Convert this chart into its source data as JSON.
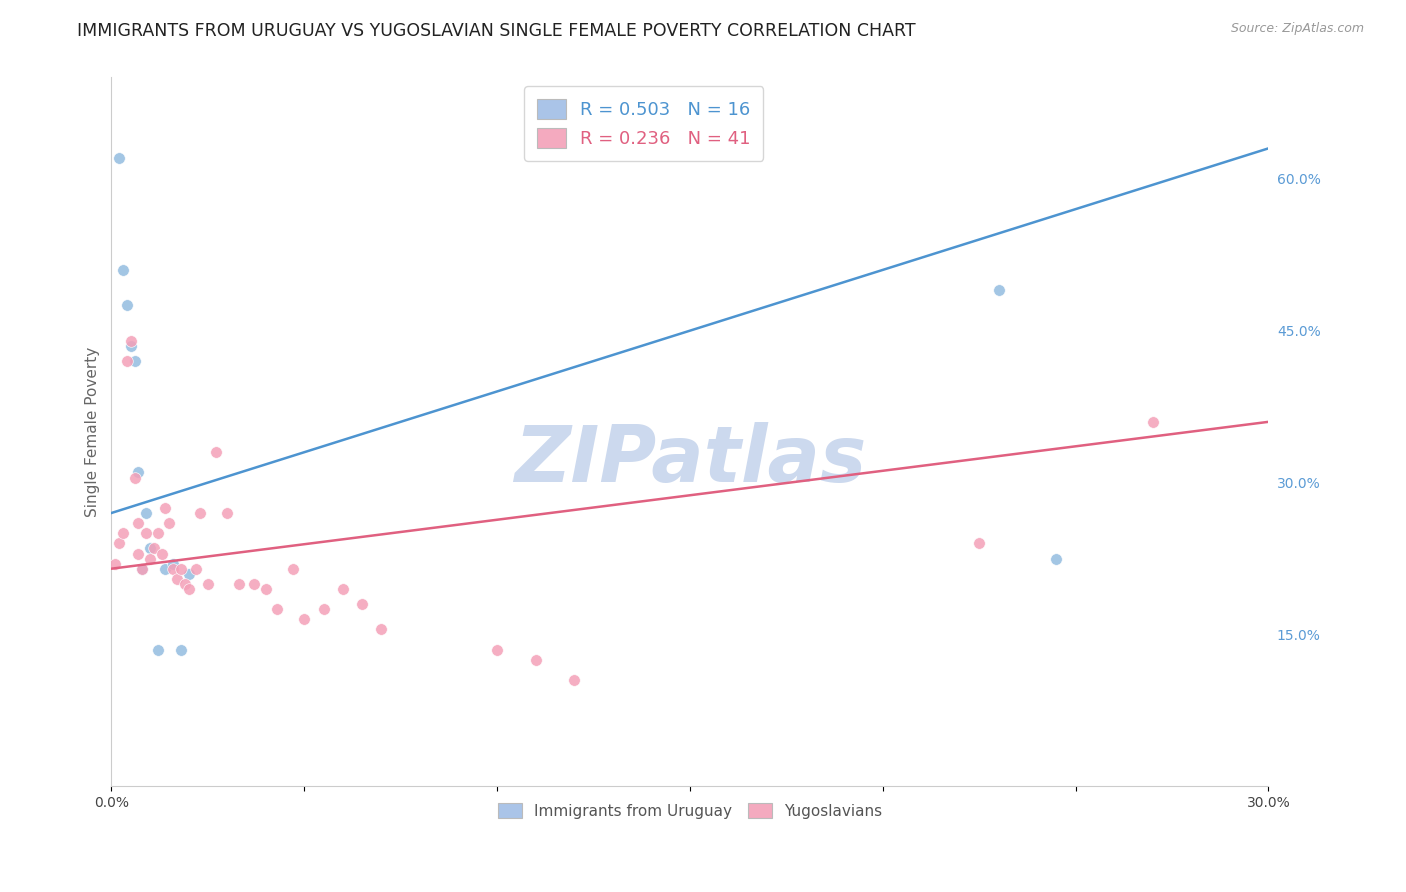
{
  "title": "IMMIGRANTS FROM URUGUAY VS YUGOSLAVIAN SINGLE FEMALE POVERTY CORRELATION CHART",
  "source": "Source: ZipAtlas.com",
  "ylabel": "Single Female Poverty",
  "xlim": [
    0.0,
    0.3
  ],
  "ylim": [
    0.0,
    0.7
  ],
  "xticks": [
    0.0,
    0.05,
    0.1,
    0.15,
    0.2,
    0.25,
    0.3
  ],
  "xtick_labels": [
    "0.0%",
    "",
    "",
    "",
    "",
    "",
    "30.0%"
  ],
  "yticks_right": [
    0.15,
    0.3,
    0.45,
    0.6
  ],
  "ytick_right_labels": [
    "15.0%",
    "30.0%",
    "45.0%",
    "60.0%"
  ],
  "legend_label1": "R = 0.503   N = 16",
  "legend_label2": "R = 0.236   N = 41",
  "legend_color1": "#aac4e8",
  "legend_color2": "#f4aabf",
  "series1_color": "#93bce0",
  "series2_color": "#f4a0b8",
  "line1_color": "#4d94d0",
  "line2_color": "#e06080",
  "watermark": "ZIPatlas",
  "watermark_color": "#ccd9ee",
  "series1_x": [
    0.002,
    0.003,
    0.004,
    0.005,
    0.006,
    0.007,
    0.008,
    0.009,
    0.01,
    0.012,
    0.014,
    0.016,
    0.018,
    0.02,
    0.23,
    0.245
  ],
  "series1_y": [
    0.62,
    0.51,
    0.475,
    0.435,
    0.42,
    0.31,
    0.215,
    0.27,
    0.235,
    0.135,
    0.215,
    0.22,
    0.135,
    0.21,
    0.49,
    0.225
  ],
  "series2_x": [
    0.001,
    0.002,
    0.003,
    0.004,
    0.005,
    0.006,
    0.007,
    0.007,
    0.008,
    0.009,
    0.01,
    0.011,
    0.012,
    0.013,
    0.014,
    0.015,
    0.016,
    0.017,
    0.018,
    0.019,
    0.02,
    0.022,
    0.023,
    0.025,
    0.027,
    0.03,
    0.033,
    0.037,
    0.04,
    0.043,
    0.047,
    0.05,
    0.055,
    0.06,
    0.065,
    0.07,
    0.1,
    0.11,
    0.12,
    0.225,
    0.27
  ],
  "series2_y": [
    0.22,
    0.24,
    0.25,
    0.42,
    0.44,
    0.305,
    0.26,
    0.23,
    0.215,
    0.25,
    0.225,
    0.235,
    0.25,
    0.23,
    0.275,
    0.26,
    0.215,
    0.205,
    0.215,
    0.2,
    0.195,
    0.215,
    0.27,
    0.2,
    0.33,
    0.27,
    0.2,
    0.2,
    0.195,
    0.175,
    0.215,
    0.165,
    0.175,
    0.195,
    0.18,
    0.155,
    0.135,
    0.125,
    0.105,
    0.24,
    0.36
  ],
  "line1_x0": 0.0,
  "line1_y0": 0.27,
  "line1_x1": 0.3,
  "line1_y1": 0.63,
  "line2_x0": 0.0,
  "line2_y0": 0.215,
  "line2_x1": 0.3,
  "line2_y1": 0.36,
  "grid_color": "#d0d0d0",
  "background_color": "#ffffff",
  "title_fontsize": 12.5,
  "axis_label_fontsize": 11,
  "tick_fontsize": 10,
  "marker_size": 70
}
